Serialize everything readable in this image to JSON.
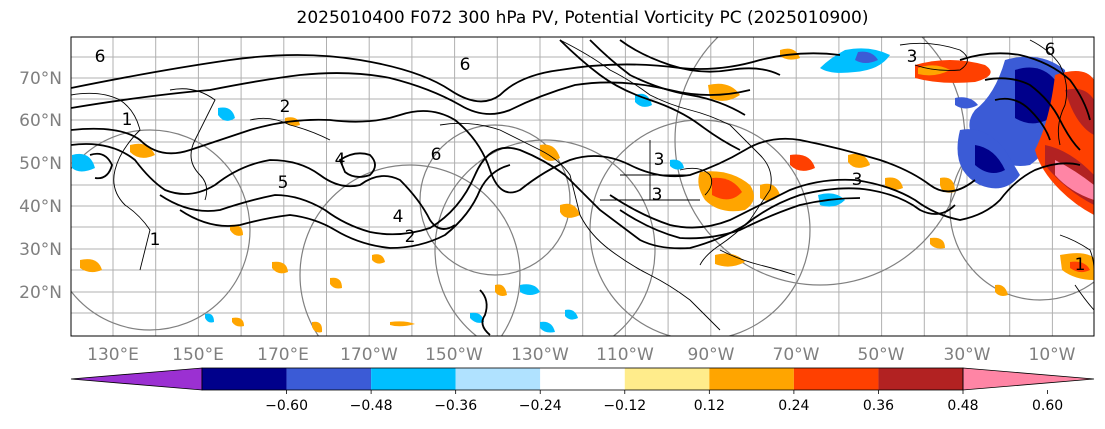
{
  "title": "2025010400 F072 300 hPa PV, Potential Vorticity PC (2025010900)",
  "lat_labels": [
    "70°N",
    "60°N",
    "50°N",
    "40°N",
    "30°N",
    "20°N"
  ],
  "lon_labels": [
    "130°E",
    "150°E",
    "170°E",
    "170°W",
    "150°W",
    "130°W",
    "110°W",
    "90°W",
    "70°W",
    "50°W",
    "30°W",
    "10°W"
  ],
  "contour_labels": [
    "6",
    "2",
    "1",
    "4",
    "6",
    "5",
    "3",
    "2",
    "4",
    "1",
    "6",
    "3",
    "3",
    "3",
    "6",
    "1"
  ],
  "colorbar": {
    "colors": [
      "#9b30d2",
      "#00008b",
      "#3b5bd6",
      "#00bfff",
      "#b0e2ff",
      "#ffffff",
      "#ffec8b",
      "#ffa500",
      "#ff4000",
      "#b22222",
      "#ff85a5"
    ],
    "tick_labels": [
      "−0.60",
      "−0.48",
      "−0.36",
      "−0.24",
      "−0.12",
      "0.12",
      "0.24",
      "0.36",
      "0.48",
      "0.60"
    ]
  }
}
